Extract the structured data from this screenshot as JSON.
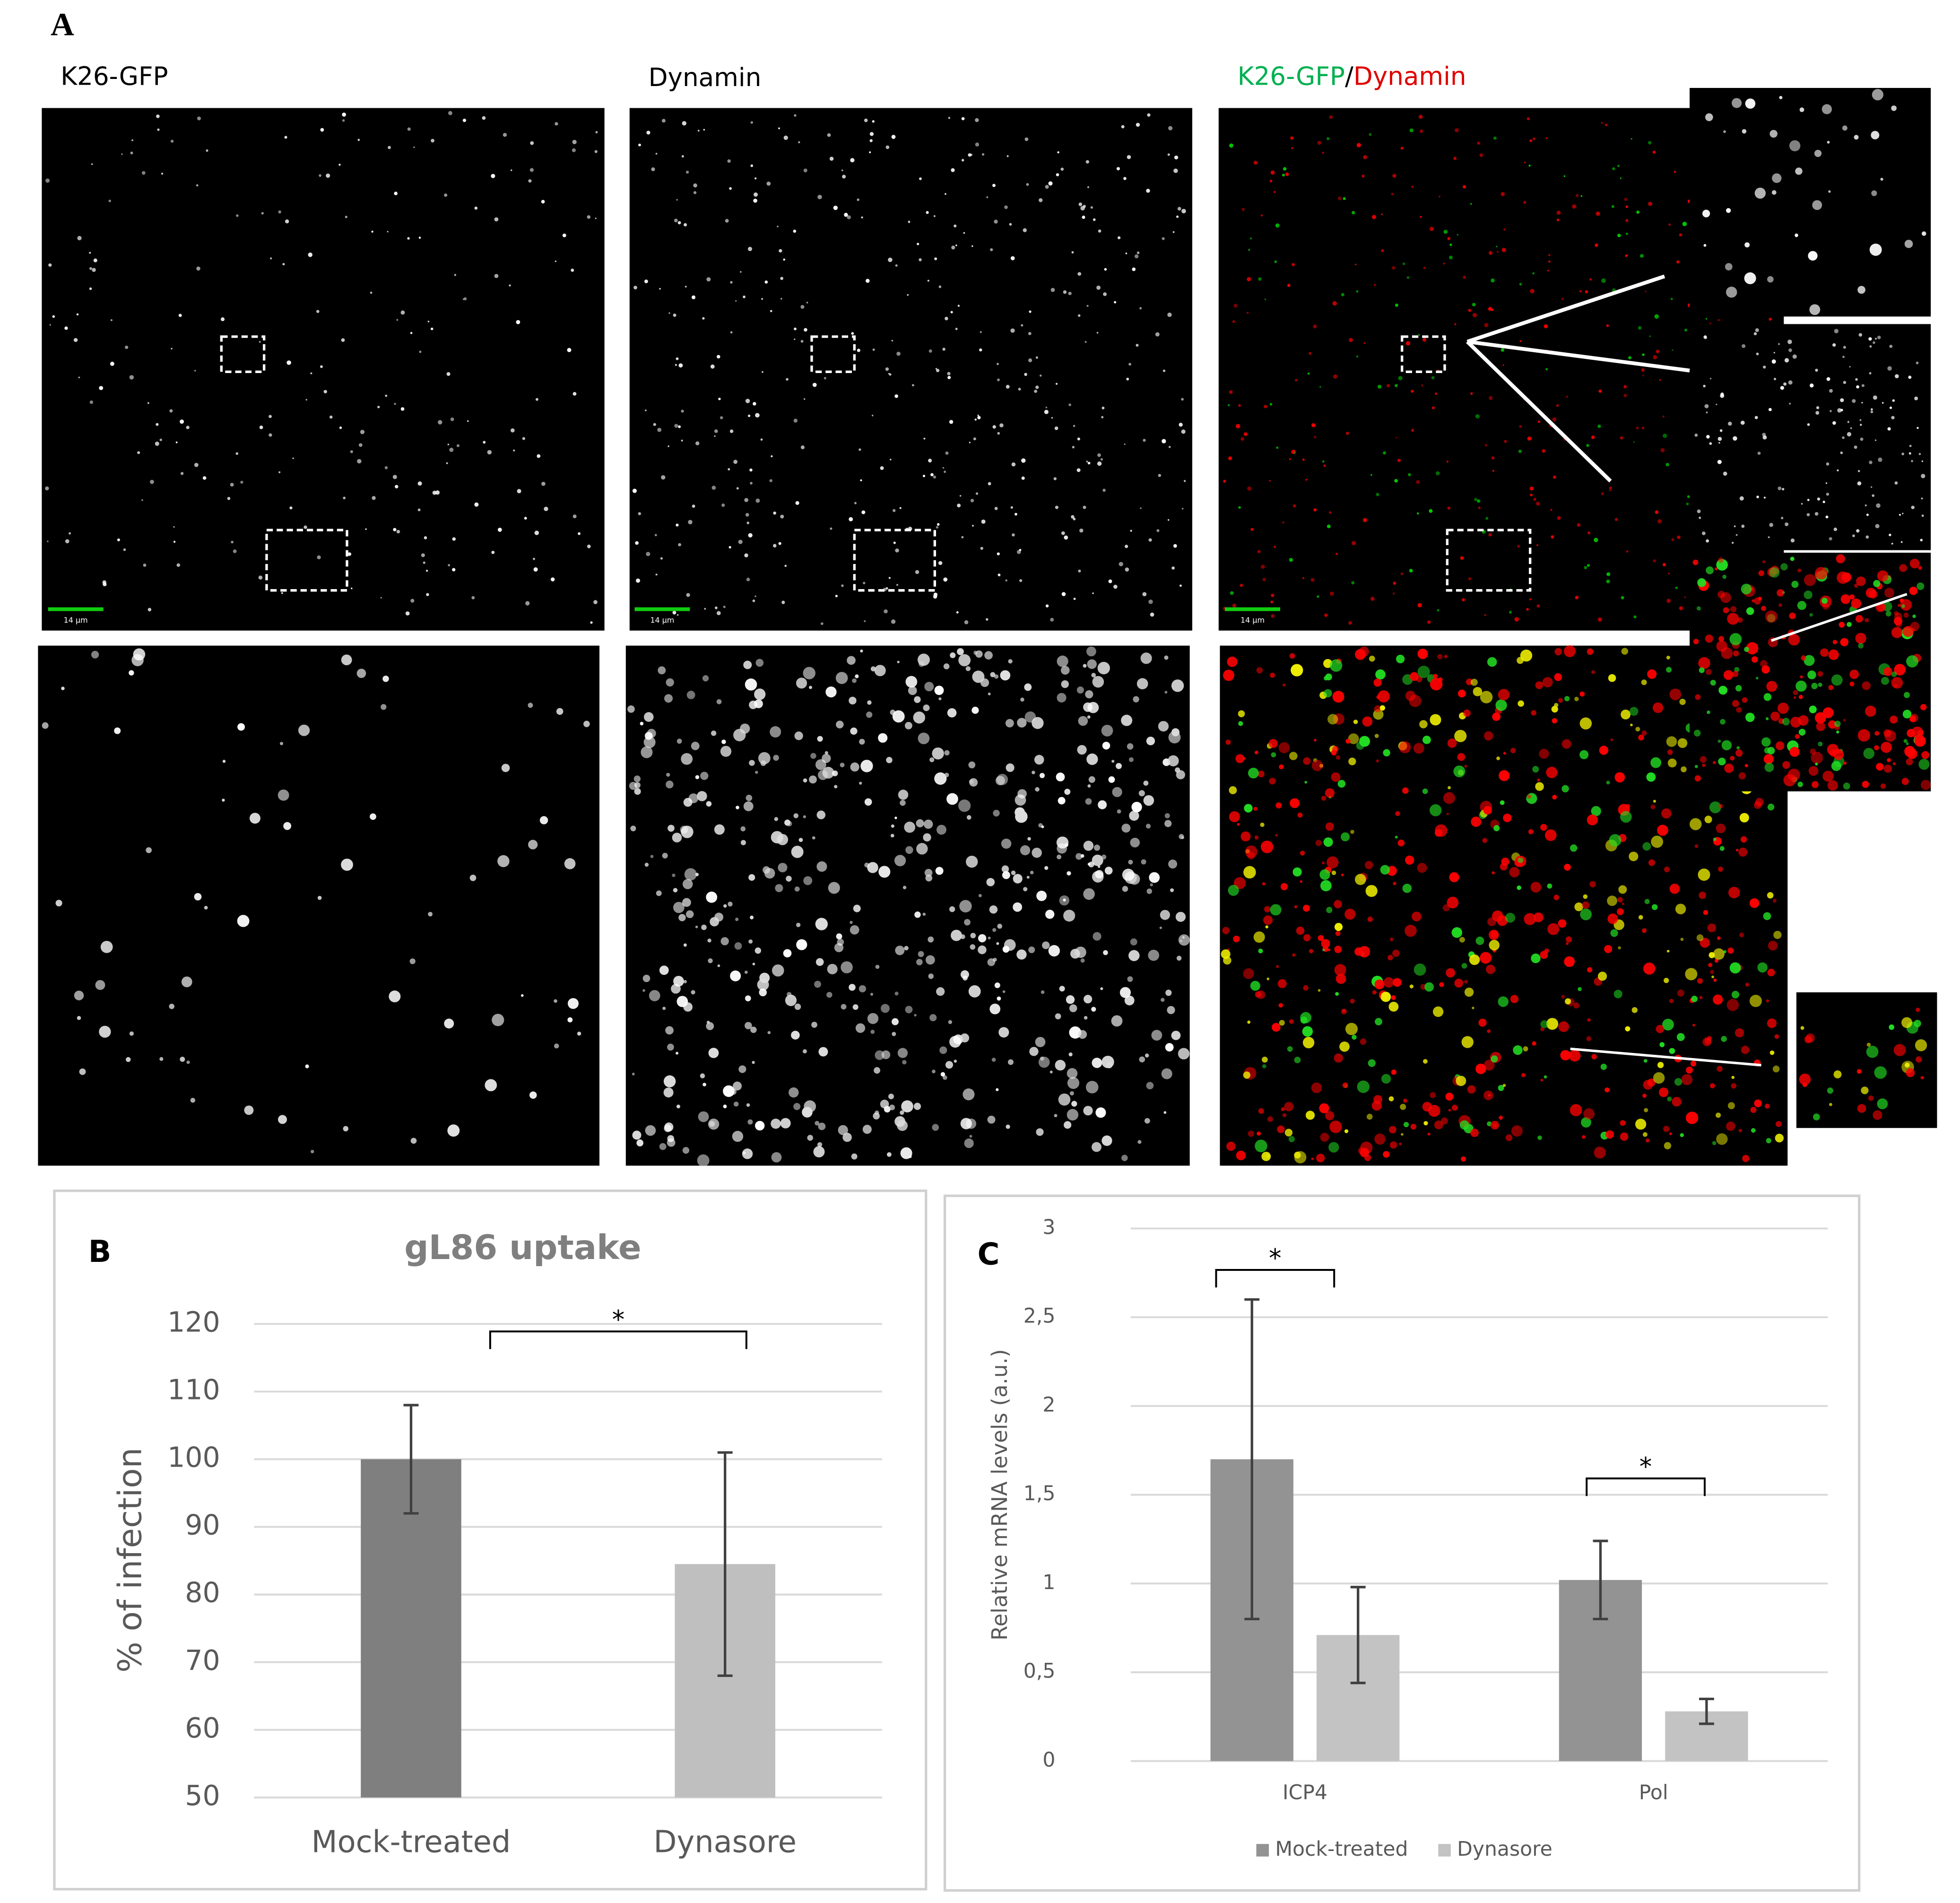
{
  "figure": {
    "panel_label": "A",
    "image_titles": [
      "K26-GFP",
      "Dynamin"
    ],
    "merge_title": {
      "green": "K26-GFP",
      "separator": "/",
      "red": "Dynamin"
    },
    "scale_bars": [
      "14 µm",
      "14 µm",
      "14 µm"
    ]
  },
  "chart_data": [
    {
      "type": "bar",
      "panel_label": "B",
      "title": "gL86 uptake",
      "y_label": "% of infection",
      "categories": [
        "Mock-treated",
        "Dynasore"
      ],
      "values": [
        100,
        84.5
      ],
      "errors": [
        8,
        16.5
      ],
      "colors": [
        "#7f7f7f",
        "#bfbfbf"
      ],
      "ylim": [
        50,
        120
      ],
      "yticks": [
        50,
        60,
        70,
        80,
        90,
        100,
        110,
        120
      ],
      "grid": true,
      "annotations": [
        "*"
      ]
    },
    {
      "type": "grouped-bar",
      "panel_label": "C",
      "y_label": "Relative mRNA levels (a.u.)",
      "categories": [
        "ICP4",
        "Pol"
      ],
      "series": [
        {
          "name": "Mock-treated",
          "color": "#939393",
          "values": [
            1.7,
            1.02
          ],
          "errors": [
            0.9,
            0.22
          ]
        },
        {
          "name": "Dynasore",
          "color": "#c3c3c3",
          "values": [
            0.71,
            0.28
          ],
          "errors": [
            0.27,
            0.07
          ]
        }
      ],
      "ylim": [
        0,
        3
      ],
      "yticks": [
        0,
        {
          "value": 0.5,
          "label": "0,5"
        },
        1,
        {
          "value": 1.5,
          "label": "1,5"
        },
        2,
        {
          "value": 2.5,
          "label": "2,5"
        },
        3
      ],
      "grid": true,
      "legend": "bottom",
      "annotations": [
        "*",
        "*"
      ]
    }
  ]
}
